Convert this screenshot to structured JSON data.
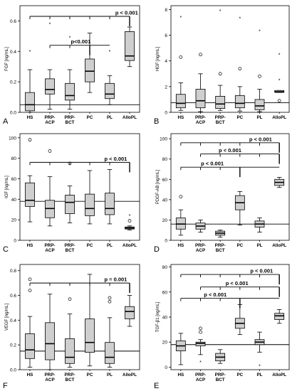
{
  "chart_data": [
    {
      "type": "box",
      "panel": "A",
      "ylabel": "FGF [ng/mL]",
      "ylim": [
        0,
        0.7
      ],
      "yticks": [
        0.0,
        0.2,
        0.4,
        0.6
      ],
      "ytick_labels": [
        "0.0",
        "0.2",
        "0.4",
        "0.6"
      ],
      "categories": [
        "HS",
        "PRP-\nACP",
        "PRP-\nBCT",
        "PC",
        "PL",
        "AlloPL"
      ],
      "boxes": [
        {
          "min": 0.0,
          "q1": 0.01,
          "median": 0.05,
          "q3": 0.13,
          "max": 0.28
        },
        {
          "min": 0.02,
          "q1": 0.12,
          "median": 0.15,
          "q3": 0.22,
          "max": 0.28
        },
        {
          "min": 0.02,
          "q1": 0.08,
          "median": 0.11,
          "q3": 0.19,
          "max": 0.28
        },
        {
          "min": 0.13,
          "q1": 0.2,
          "median": 0.27,
          "q3": 0.35,
          "max": 0.52
        },
        {
          "min": 0.05,
          "q1": 0.09,
          "median": 0.12,
          "q3": 0.19,
          "max": 0.24
        },
        {
          "min": 0.3,
          "q1": 0.34,
          "median": 0.37,
          "q3": 0.53,
          "max": 0.56
        }
      ],
      "outliers": [
        [
          0,
          0.4,
          "star"
        ],
        [
          1,
          0.58,
          "star"
        ],
        [
          2,
          0.49,
          "star"
        ],
        [
          4,
          0.4,
          "star"
        ]
      ],
      "refline": 0.05,
      "brackets": [
        {
          "from": 0,
          "to": 5,
          "y": 0.63,
          "drops": [
            0,
            1,
            2,
            3,
            4
          ],
          "target": 5,
          "label": "p < 0.001",
          "label_cat": 4.85
        },
        {
          "from": 1,
          "to": 4,
          "y": 0.44,
          "drops": [
            1,
            2
          ],
          "target": 3,
          "label": "p<0.001",
          "label_cat": 2.55
        }
      ]
    },
    {
      "type": "box",
      "panel": "B",
      "ylabel": "HGF [ng/mL]",
      "ylim": [
        0,
        8.3
      ],
      "yticks": [
        0,
        2,
        4,
        6,
        8
      ],
      "ytick_labels": [
        "0",
        "2",
        "4",
        "6",
        "8"
      ],
      "categories": [
        "HS",
        "PRP-\nACP",
        "PRP-\nBCT",
        "PC",
        "PL",
        "AlloPL"
      ],
      "boxes": [
        {
          "min": 0.15,
          "q1": 0.35,
          "median": 0.7,
          "q3": 1.4,
          "max": 2.3
        },
        {
          "min": 0.05,
          "q1": 0.35,
          "median": 0.9,
          "q3": 1.8,
          "max": 3.0
        },
        {
          "min": 0.15,
          "q1": 0.3,
          "median": 0.65,
          "q3": 1.25,
          "max": 2.1
        },
        {
          "min": 0.1,
          "q1": 0.35,
          "median": 0.7,
          "q3": 1.3,
          "max": 2.0
        },
        {
          "min": 0.05,
          "q1": 0.2,
          "median": 0.5,
          "q3": 1.0,
          "max": 1.8
        },
        {
          "min": 1.55,
          "q1": 1.55,
          "median": 1.6,
          "q3": 1.7,
          "max": 1.7
        }
      ],
      "outliers": [
        [
          0,
          7.4,
          "star"
        ],
        [
          0,
          4.3,
          "circle"
        ],
        [
          1,
          4.5,
          "circle"
        ],
        [
          2,
          7.9,
          "star"
        ],
        [
          2,
          3.0,
          "circle"
        ],
        [
          3,
          7.3,
          "star"
        ],
        [
          3,
          3.4,
          "circle"
        ],
        [
          4,
          6.3,
          "star"
        ],
        [
          4,
          2.8,
          "circle"
        ],
        [
          5,
          4.5,
          "star"
        ],
        [
          5,
          2.5,
          "star"
        ],
        [
          5,
          0.9,
          "circle"
        ]
      ],
      "refline": 0.75,
      "brackets": []
    },
    {
      "type": "box",
      "panel": "C",
      "ylabel": "IGF [ng/mL]",
      "ylim": [
        0,
        104
      ],
      "yticks": [
        0,
        20,
        40,
        60,
        80,
        100
      ],
      "ytick_labels": [
        "0",
        "20",
        "40",
        "60",
        "80",
        "100"
      ],
      "categories": [
        "HS",
        "PRP-\nACP",
        "PRP-\nBCT",
        "PC",
        "PL",
        "AlloPL"
      ],
      "boxes": [
        {
          "min": 18,
          "q1": 33,
          "median": 39,
          "q3": 56,
          "max": 63
        },
        {
          "min": 14,
          "q1": 22,
          "median": 31,
          "q3": 39,
          "max": 62
        },
        {
          "min": 17,
          "q1": 26,
          "median": 37,
          "q3": 44,
          "max": 53
        },
        {
          "min": 16,
          "q1": 24,
          "median": 31,
          "q3": 45,
          "max": 68
        },
        {
          "min": 16,
          "q1": 25,
          "median": 31,
          "q3": 46,
          "max": 69
        },
        {
          "min": 10,
          "q1": 11,
          "median": 12,
          "q3": 13,
          "max": 14
        }
      ],
      "outliers": [
        [
          0,
          98,
          "circle"
        ],
        [
          1,
          87,
          "circle"
        ],
        [
          2,
          75,
          "circle"
        ],
        [
          5,
          24,
          "star"
        ],
        [
          5,
          19,
          "circle"
        ]
      ],
      "refline": 38,
      "brackets": [
        {
          "from": 0,
          "to": 5,
          "y": 76,
          "drops": [
            0,
            1,
            2,
            3,
            4
          ],
          "target": 5,
          "label": "p < 0.001",
          "label_cat": 4.3
        }
      ]
    },
    {
      "type": "box",
      "panel": "D",
      "ylabel": "PDGF-AB [ng/mL]",
      "ylim": [
        0,
        105
      ],
      "yticks": [
        0,
        20,
        40,
        60,
        80,
        100
      ],
      "ytick_labels": [
        "0",
        "20",
        "40",
        "60",
        "80",
        "100"
      ],
      "categories": [
        "HS",
        "PRP-\nACP",
        "PRP-\nBCT",
        "PC",
        "PL",
        "AlloPL"
      ],
      "boxes": [
        {
          "min": 5,
          "q1": 11,
          "median": 16,
          "q3": 22,
          "max": 30
        },
        {
          "min": 8,
          "q1": 11,
          "median": 14,
          "q3": 17,
          "max": 20
        },
        {
          "min": 3,
          "q1": 5,
          "median": 7,
          "q3": 9,
          "max": 10
        },
        {
          "min": 15,
          "q1": 30,
          "median": 37,
          "q3": 44,
          "max": 48
        },
        {
          "min": 8,
          "q1": 13,
          "median": 16,
          "q3": 19,
          "max": 22
        },
        {
          "min": 52,
          "q1": 54,
          "median": 57,
          "q3": 60,
          "max": 62
        }
      ],
      "outliers": [
        [
          0,
          43,
          "circle"
        ]
      ],
      "refline": 16,
      "brackets": [
        {
          "from": 0,
          "to": 5,
          "y": 96,
          "drops": [
            0,
            1,
            2,
            3,
            4
          ],
          "target": 5,
          "label": "p < 0.001",
          "label_cat": 4.05
        },
        {
          "from": 1,
          "to": 5,
          "y": 85,
          "drops": [
            1,
            2,
            3,
            4
          ],
          "target": 5,
          "label": "p < 0.001",
          "label_cat": 2.5
        },
        {
          "from": 0,
          "to": 5,
          "y": 72,
          "drops": [
            0,
            1,
            2
          ],
          "target": 3,
          "label": "p < 0.001",
          "label_cat": 1.6
        }
      ]
    },
    {
      "type": "box",
      "panel": "F",
      "ylabel": "VEGF [ng/mL]",
      "ylim": [
        0,
        0.85
      ],
      "yticks": [
        0.0,
        0.2,
        0.4,
        0.6,
        0.8
      ],
      "ytick_labels": [
        "0.0",
        "0.2",
        "0.4",
        "0.6",
        "0.8"
      ],
      "categories": [
        "HS",
        "PRP-\nACP",
        "PRP-\nBCT",
        "PC",
        "PL",
        "AlloPL"
      ],
      "boxes": [
        {
          "min": 0.02,
          "q1": 0.09,
          "median": 0.16,
          "q3": 0.29,
          "max": 0.43
        },
        {
          "min": 0.0,
          "q1": 0.08,
          "median": 0.21,
          "q3": 0.38,
          "max": 0.61
        },
        {
          "min": 0.02,
          "q1": 0.05,
          "median": 0.1,
          "q3": 0.25,
          "max": 0.45
        },
        {
          "min": 0.03,
          "q1": 0.14,
          "median": 0.22,
          "q3": 0.41,
          "max": 0.77
        },
        {
          "min": 0.02,
          "q1": 0.05,
          "median": 0.1,
          "q3": 0.22,
          "max": 0.42
        },
        {
          "min": 0.35,
          "q1": 0.41,
          "median": 0.47,
          "q3": 0.51,
          "max": 0.6
        }
      ],
      "outliers": [
        [
          0,
          0.73,
          "circle"
        ],
        [
          0,
          0.64,
          "circle"
        ],
        [
          2,
          0.57,
          "circle"
        ],
        [
          4,
          0.58,
          "circle"
        ],
        [
          4,
          0.55,
          "circle"
        ]
      ],
      "refline": 0.15,
      "brackets": [
        {
          "from": 0,
          "to": 5,
          "y": 0.7,
          "drops": [
            0,
            1,
            2,
            3,
            4
          ],
          "target": 5,
          "label": "p = 0.001",
          "label_cat": 4.3
        }
      ]
    },
    {
      "type": "box",
      "panel": "E",
      "ylabel": "TGF-β1 [ng/mL]",
      "ylim": [
        -2,
        82
      ],
      "yticks": [
        0,
        20,
        40,
        60,
        80
      ],
      "ytick_labels": [
        "0",
        "20",
        "40",
        "60",
        "80"
      ],
      "categories": [
        "HS",
        "PRP-\nACP",
        "PRP-\nBCT",
        "PC",
        "PL",
        "AlloPL"
      ],
      "boxes": [
        {
          "min": 2,
          "q1": 13,
          "median": 17,
          "q3": 21,
          "max": 27
        },
        {
          "min": 10,
          "q1": 17,
          "median": 19,
          "q3": 20,
          "max": 22
        },
        {
          "min": 3,
          "q1": 5,
          "median": 8,
          "q3": 11,
          "max": 14
        },
        {
          "min": 26,
          "q1": 31,
          "median": 35,
          "q3": 39,
          "max": 50
        },
        {
          "min": 12,
          "q1": 18,
          "median": 20,
          "q3": 22,
          "max": 28
        },
        {
          "min": 35,
          "q1": 38,
          "median": 41,
          "q3": 43,
          "max": 46
        }
      ],
      "outliers": [
        [
          1,
          31,
          "circle"
        ],
        [
          1,
          28,
          "circle"
        ],
        [
          1,
          4,
          "star"
        ],
        [
          4,
          1,
          "star"
        ]
      ],
      "refline": 18,
      "brackets": [
        {
          "from": 0,
          "to": 5,
          "y": 74,
          "drops": [
            0,
            1,
            2,
            3,
            4
          ],
          "target": 5,
          "label": "p < 0.001",
          "label_cat": 4.1
        },
        {
          "from": 1,
          "to": 5,
          "y": 64,
          "drops": [
            1,
            2,
            3,
            4
          ],
          "target": 5,
          "label": "p < 0.001",
          "label_cat": 2.85
        },
        {
          "from": 0,
          "to": 5,
          "y": 55,
          "drops": [
            0,
            1,
            2
          ],
          "target": 3,
          "label": "p < 0.001",
          "label_cat": 1.75
        }
      ]
    }
  ]
}
